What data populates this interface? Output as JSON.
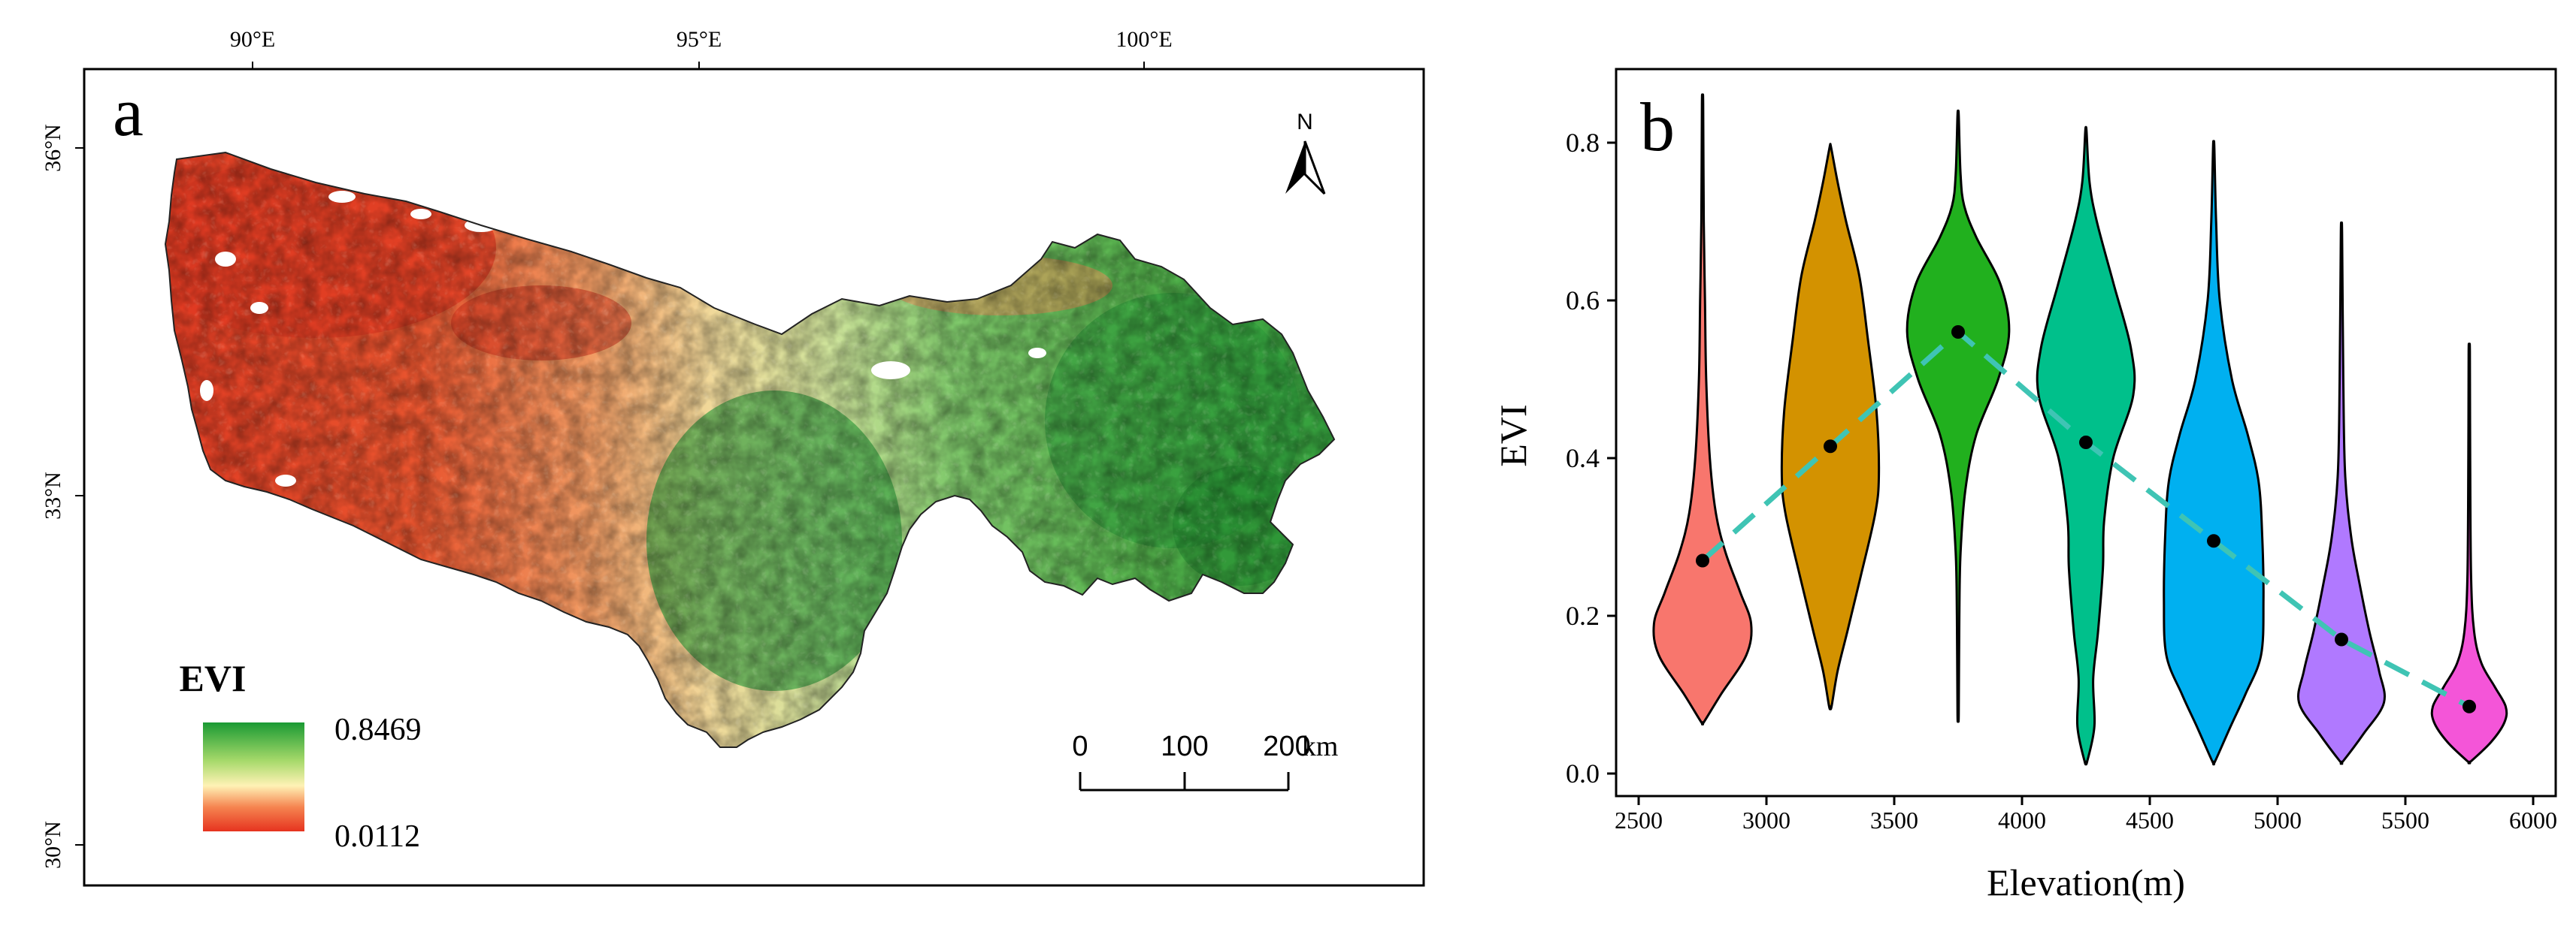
{
  "panel_a": {
    "label": "a",
    "lon_ticks": [
      "90°E",
      "95°E",
      "100°E"
    ],
    "lat_ticks": [
      "36°N",
      "33°N",
      "30°N"
    ],
    "north_label": "N",
    "legend": {
      "title": "EVI",
      "max_label": "0.8469",
      "min_label": "0.0112",
      "colors": [
        "#1a9a33",
        "#a6d96a",
        "#fff2b5",
        "#f5834f",
        "#e6331f"
      ]
    },
    "scalebar": {
      "labels": [
        "0",
        "100",
        "200"
      ],
      "unit": "km"
    },
    "map_colors": {
      "arid": "#e03a22",
      "mid": "#f4c27a",
      "light": "#e8eb9c",
      "green": "#3aa63f",
      "dark_green": "#1f8a2e"
    }
  },
  "chart_data": {
    "type": "violin",
    "label": "b",
    "xlabel": "Elevation(m)",
    "ylabel": "EVI",
    "xlim": [
      2500,
      6000
    ],
    "ylim": [
      0.0,
      0.8
    ],
    "x_ticks": [
      2500,
      3000,
      3500,
      4000,
      4500,
      5000,
      5500,
      6000
    ],
    "y_ticks": [
      "0.0",
      "0.2",
      "0.4",
      "0.6",
      "0.8"
    ],
    "trend_color": "#3fc4b4",
    "violins": [
      {
        "x": 2750,
        "median": 0.27,
        "min": 0.065,
        "max": 0.85,
        "color": "#f8766d",
        "width": 0.6,
        "profile": [
          [
            0.065,
            0.02
          ],
          [
            0.1,
            0.3
          ],
          [
            0.15,
            0.72
          ],
          [
            0.19,
            0.8
          ],
          [
            0.23,
            0.62
          ],
          [
            0.28,
            0.38
          ],
          [
            0.33,
            0.22
          ],
          [
            0.4,
            0.12
          ],
          [
            0.5,
            0.06
          ],
          [
            0.6,
            0.04
          ],
          [
            0.7,
            0.02
          ],
          [
            0.85,
            0.01
          ]
        ]
      },
      {
        "x": 3250,
        "median": 0.415,
        "min": 0.085,
        "max": 0.795,
        "color": "#d39200",
        "width": 0.6,
        "profile": [
          [
            0.085,
            0.02
          ],
          [
            0.13,
            0.12
          ],
          [
            0.18,
            0.28
          ],
          [
            0.25,
            0.5
          ],
          [
            0.33,
            0.74
          ],
          [
            0.38,
            0.8
          ],
          [
            0.46,
            0.76
          ],
          [
            0.55,
            0.62
          ],
          [
            0.63,
            0.48
          ],
          [
            0.7,
            0.26
          ],
          [
            0.75,
            0.12
          ],
          [
            0.795,
            0.01
          ]
        ]
      },
      {
        "x": 3750,
        "median": 0.56,
        "min": 0.075,
        "max": 0.835,
        "color": "#21b01e",
        "width": 0.6,
        "profile": [
          [
            0.075,
            0.01
          ],
          [
            0.2,
            0.02
          ],
          [
            0.28,
            0.04
          ],
          [
            0.36,
            0.12
          ],
          [
            0.43,
            0.3
          ],
          [
            0.5,
            0.66
          ],
          [
            0.56,
            0.84
          ],
          [
            0.62,
            0.7
          ],
          [
            0.68,
            0.3
          ],
          [
            0.72,
            0.1
          ],
          [
            0.76,
            0.04
          ],
          [
            0.835,
            0.01
          ]
        ]
      },
      {
        "x": 4250,
        "median": 0.42,
        "min": 0.015,
        "max": 0.815,
        "color": "#00c08b",
        "width": 0.6,
        "profile": [
          [
            0.015,
            0.02
          ],
          [
            0.06,
            0.14
          ],
          [
            0.12,
            0.12
          ],
          [
            0.18,
            0.2
          ],
          [
            0.26,
            0.28
          ],
          [
            0.32,
            0.3
          ],
          [
            0.4,
            0.45
          ],
          [
            0.48,
            0.78
          ],
          [
            0.54,
            0.74
          ],
          [
            0.62,
            0.46
          ],
          [
            0.7,
            0.18
          ],
          [
            0.75,
            0.06
          ],
          [
            0.815,
            0.01
          ]
        ]
      },
      {
        "x": 4750,
        "median": 0.295,
        "min": 0.015,
        "max": 0.795,
        "color": "#00b0f0",
        "width": 0.6,
        "profile": [
          [
            0.015,
            0.02
          ],
          [
            0.06,
            0.28
          ],
          [
            0.1,
            0.52
          ],
          [
            0.15,
            0.78
          ],
          [
            0.22,
            0.82
          ],
          [
            0.3,
            0.8
          ],
          [
            0.37,
            0.74
          ],
          [
            0.43,
            0.56
          ],
          [
            0.5,
            0.3
          ],
          [
            0.6,
            0.1
          ],
          [
            0.7,
            0.04
          ],
          [
            0.795,
            0.01
          ]
        ]
      },
      {
        "x": 5250,
        "median": 0.17,
        "min": 0.015,
        "max": 0.685,
        "color": "#b079ff",
        "width": 0.6,
        "profile": [
          [
            0.015,
            0.02
          ],
          [
            0.05,
            0.36
          ],
          [
            0.09,
            0.7
          ],
          [
            0.13,
            0.62
          ],
          [
            0.18,
            0.46
          ],
          [
            0.24,
            0.3
          ],
          [
            0.3,
            0.16
          ],
          [
            0.38,
            0.06
          ],
          [
            0.5,
            0.03
          ],
          [
            0.685,
            0.01
          ]
        ]
      },
      {
        "x": 5750,
        "median": 0.085,
        "min": 0.015,
        "max": 0.535,
        "color": "#f455d8",
        "width": 0.6,
        "profile": [
          [
            0.015,
            0.02
          ],
          [
            0.04,
            0.36
          ],
          [
            0.065,
            0.58
          ],
          [
            0.085,
            0.6
          ],
          [
            0.11,
            0.42
          ],
          [
            0.14,
            0.2
          ],
          [
            0.18,
            0.08
          ],
          [
            0.25,
            0.03
          ],
          [
            0.4,
            0.015
          ],
          [
            0.535,
            0.01
          ]
        ]
      }
    ]
  }
}
